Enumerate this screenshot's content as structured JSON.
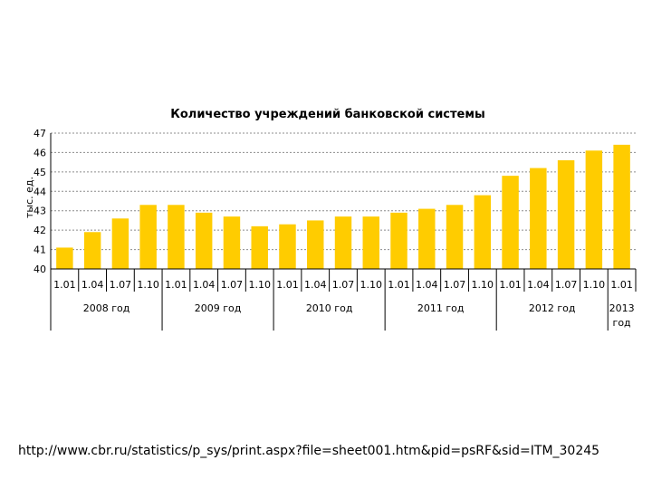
{
  "chart_data": {
    "type": "bar",
    "title": "Количество учреждений банковской системы",
    "ylabel": "тыс. ед.",
    "xlabel": "",
    "ylim": [
      40,
      47
    ],
    "yticks": [
      "40",
      "41",
      "42",
      "43",
      "44",
      "45",
      "46",
      "47"
    ],
    "grid": true,
    "bar_color": "#FFCC00",
    "categories": [
      "1.01",
      "1.04",
      "1.07",
      "1.10",
      "1.01",
      "1.04",
      "1.07",
      "1.10",
      "1.01",
      "1.04",
      "1.07",
      "1.10",
      "1.01",
      "1.04",
      "1.07",
      "1.10",
      "1.01",
      "1.04",
      "1.07",
      "1.10",
      "1.01"
    ],
    "groups": [
      {
        "label": "2008 год",
        "count": 4
      },
      {
        "label": "2009 год",
        "count": 4
      },
      {
        "label": "2010 год",
        "count": 4
      },
      {
        "label": "2011 год",
        "count": 4
      },
      {
        "label": "2012 год",
        "count": 4
      },
      {
        "label": "2013 год",
        "count": 1
      }
    ],
    "values": [
      41.1,
      41.9,
      42.6,
      43.3,
      43.3,
      42.9,
      42.7,
      42.2,
      42.3,
      42.5,
      42.7,
      42.7,
      42.9,
      43.1,
      43.3,
      43.8,
      44.8,
      45.2,
      45.6,
      46.1,
      46.4
    ]
  },
  "source_url": "http://www.cbr.ru/statistics/p_sys/print.aspx?file=sheet001.htm&pid=psRF&sid=ITM_30245"
}
